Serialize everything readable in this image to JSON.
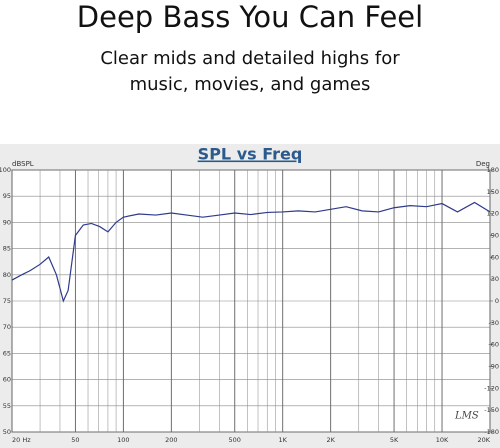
{
  "header": {
    "title": "Deep Bass You Can Feel",
    "subtitle_lines": [
      "Clear mids and detailed highs for",
      "music, movies, and games"
    ]
  },
  "chart_data": {
    "type": "line",
    "title": "SPL vs Freq",
    "y_label": "dBSPL",
    "y2_label": "Deg",
    "watermark": "LMS",
    "log_x": true,
    "grid": true,
    "x": [
      20,
      23,
      26,
      30,
      34,
      38,
      42,
      45,
      50,
      56,
      63,
      71,
      80,
      90,
      100,
      125,
      160,
      200,
      250,
      315,
      400,
      500,
      630,
      800,
      1000,
      1250,
      1600,
      2000,
      2500,
      3150,
      4000,
      5000,
      6300,
      8000,
      10000,
      12500,
      16000,
      20000
    ],
    "series": [
      {
        "name": "SPL",
        "color": "#2e3a8c",
        "values": [
          79.0,
          80.0,
          80.8,
          82.0,
          83.4,
          80.0,
          75.0,
          77.0,
          87.5,
          89.5,
          89.8,
          89.2,
          88.2,
          90.0,
          91.0,
          91.6,
          91.4,
          91.8,
          91.4,
          91.0,
          91.4,
          91.8,
          91.5,
          91.9,
          92.0,
          92.2,
          92.0,
          92.5,
          93.0,
          92.2,
          92.0,
          92.8,
          93.2,
          93.0,
          93.6,
          92.0,
          93.8,
          92.0
        ]
      }
    ],
    "xlim": [
      20,
      20000
    ],
    "xticks": [
      {
        "value": 20,
        "label": "20 Hz"
      },
      50,
      100,
      200,
      500,
      {
        "value": 1000,
        "label": "1K"
      },
      {
        "value": 2000,
        "label": "2K"
      },
      {
        "value": 5000,
        "label": "5K"
      },
      {
        "value": 10000,
        "label": "10K"
      },
      {
        "value": 20000,
        "label": "20K"
      }
    ],
    "ylim": [
      50,
      100
    ],
    "yticks": [
      50,
      55,
      60,
      65,
      70,
      75,
      80,
      85,
      90,
      95,
      100
    ],
    "y2lim": [
      -180,
      180
    ],
    "y2ticks": [
      -180,
      -150,
      -120,
      -90,
      -60,
      -30,
      0,
      30,
      60,
      90,
      120,
      150,
      180
    ]
  }
}
